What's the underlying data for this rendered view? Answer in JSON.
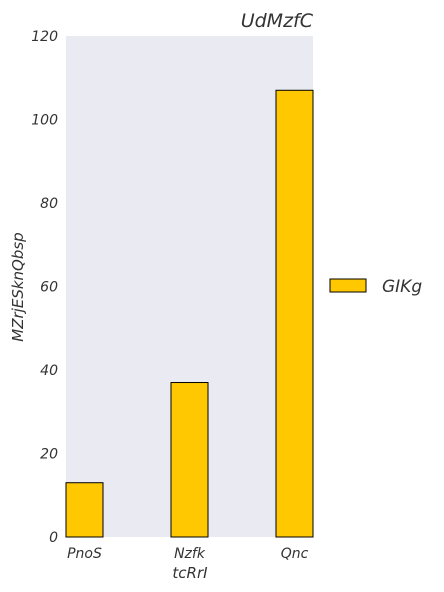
{
  "chart_data": {
    "type": "bar",
    "title": "UdMzfC",
    "xlabel": "tcRrI",
    "ylabel": "MZrjESknQbsp",
    "categories": [
      "PnoS",
      "Nzfk",
      "Qnc"
    ],
    "series": [
      {
        "name": "GIKg",
        "values": [
          13,
          37,
          107
        ],
        "color": "#ffc800"
      }
    ],
    "ylim": [
      0,
      120
    ],
    "yticks": [
      0,
      20,
      40,
      60,
      80,
      100,
      120
    ],
    "grid": false,
    "legend": "center-right",
    "background": "#e9eaf2"
  }
}
